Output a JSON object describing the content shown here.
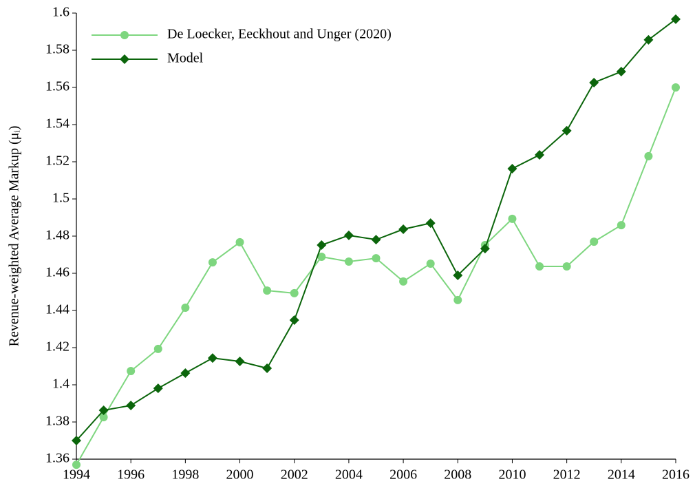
{
  "chart_data": {
    "type": "line",
    "ylabel": "Revenue-weighted Average Markup (μᵢ)",
    "x": [
      1994,
      1995,
      1996,
      1997,
      1998,
      1999,
      2000,
      2001,
      2002,
      2003,
      2004,
      2005,
      2006,
      2007,
      2008,
      2009,
      2010,
      2011,
      2012,
      2013,
      2014,
      2015,
      2016
    ],
    "series": [
      {
        "name": "De Loecker, Eeckhout and Unger (2020)",
        "color": "#7ed67f",
        "marker": "circle",
        "values": [
          1.357,
          1.3826,
          1.4074,
          1.4193,
          1.4415,
          1.4659,
          1.4767,
          1.4507,
          1.4493,
          1.4689,
          1.4663,
          1.4681,
          1.4556,
          1.4652,
          1.4456,
          1.4752,
          1.4893,
          1.4637,
          1.4637,
          1.477,
          1.4859,
          1.523,
          1.56
        ]
      },
      {
        "name": "Model",
        "color": "#0b650b",
        "marker": "diamond",
        "values": [
          1.37,
          1.3863,
          1.3889,
          1.3981,
          1.4063,
          1.4144,
          1.4126,
          1.4089,
          1.4348,
          1.4752,
          1.4804,
          1.4781,
          1.4837,
          1.487,
          1.4589,
          1.4733,
          1.5163,
          1.5237,
          1.5367,
          1.5626,
          1.5685,
          1.5856,
          1.5967
        ]
      }
    ],
    "xlim": [
      1994,
      2016
    ],
    "xticks": [
      1994,
      1996,
      1998,
      2000,
      2002,
      2004,
      2006,
      2008,
      2010,
      2012,
      2014,
      2016
    ],
    "ylim": [
      1.36,
      1.6
    ],
    "yticks": [
      1.36,
      1.38,
      1.4,
      1.42,
      1.44,
      1.46,
      1.48,
      1.5,
      1.52,
      1.54,
      1.56,
      1.58,
      1.6
    ],
    "legend": "upper-left"
  }
}
